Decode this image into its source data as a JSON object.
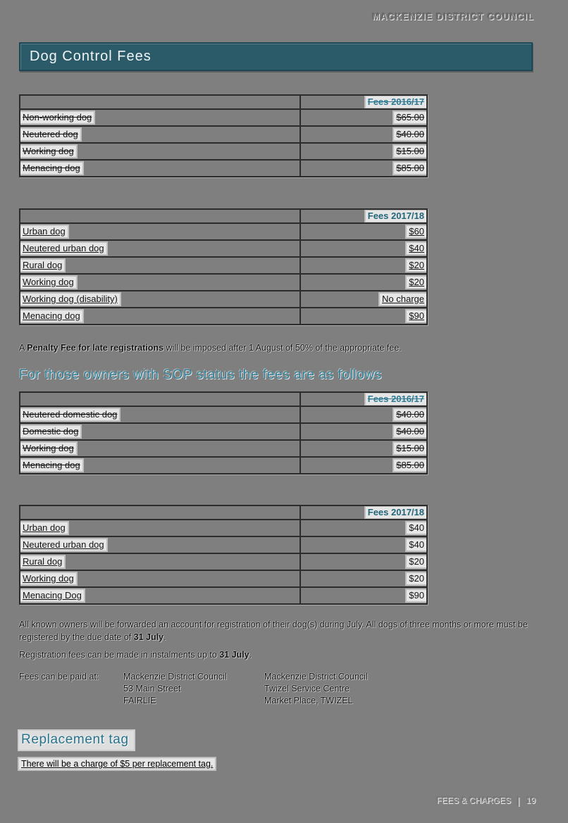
{
  "header": {
    "council_name": "MACKENZIE DISTRICT COUNCIL"
  },
  "title_banner": {
    "title": "Dog Control Fees"
  },
  "tables": [
    {
      "id": "dog-fees-2016-17",
      "header": "Fees 2016/17",
      "style": "deleted",
      "rows": [
        {
          "label": "Non-working dog",
          "value": "$65.00"
        },
        {
          "label": "Neutered dog",
          "value": "$40.00"
        },
        {
          "label": "Working dog",
          "value": "$15.00"
        },
        {
          "label": "Menacing dog",
          "value": "$85.00"
        }
      ]
    },
    {
      "id": "dog-fees-2017-18",
      "header": "Fees 2017/18",
      "style": "inserted",
      "rows": [
        {
          "label": "Urban dog",
          "value": "$60"
        },
        {
          "label": "Neutered urban dog",
          "value": "$40"
        },
        {
          "label": "Rural dog",
          "value": "$20"
        },
        {
          "label": "Working dog",
          "value": "$20"
        },
        {
          "label": "Working dog (disability)",
          "value": "No charge"
        },
        {
          "label": "Menacing dog",
          "value": "$90"
        }
      ]
    },
    {
      "id": "sop-fees-2016-17",
      "header": "Fees 2016/17",
      "style": "deleted",
      "rows": [
        {
          "label": "Neutered domestic dog",
          "value": "$40.00"
        },
        {
          "label": "Domestic dog",
          "value": "$40.00"
        },
        {
          "label": "Working dog",
          "value": "$15.00"
        },
        {
          "label": "Menacing dog",
          "value": "$85.00"
        }
      ]
    },
    {
      "id": "sop-fees-2017-18",
      "header": "Fees 2017/18",
      "style": "inserted-labels",
      "rows": [
        {
          "label": "Urban dog",
          "value": "$40"
        },
        {
          "label": "Neutered urban dog",
          "value": "$40"
        },
        {
          "label": "Rural dog",
          "value": "$20"
        },
        {
          "label": "Working dog",
          "value": "$20"
        },
        {
          "label": "Menacing Dog",
          "value": "$90"
        }
      ]
    }
  ],
  "penalty_note": {
    "prefix": "A ",
    "bold": "Penalty Fee for late registrations",
    "rest": " will be imposed after 1 August of 50% of the appropriate fee."
  },
  "sop_heading": "For those owners with SOP status the fees are as follows",
  "registration_paragraph": {
    "body": "All known owners will be forwarded an account for registration of their dog(s) during July.  All dogs of three months or more must be registered by the due date of ",
    "bold": "31 July",
    "suffix": "."
  },
  "instalments_paragraph": {
    "body": "Registration fees can be made in instalments up to ",
    "bold": "31 July",
    "suffix": "."
  },
  "payment": {
    "label": "Fees can be paid at:",
    "locations": [
      {
        "lines": [
          "Mackenzie District Council",
          "53 Main Street",
          "FAIRLIE"
        ]
      },
      {
        "lines": [
          "Mackenzie District Council",
          "Twizel Service Centre",
          "Market Place, TWIZEL"
        ]
      }
    ]
  },
  "replacement": {
    "heading": "Replacement tag",
    "note": "There will be a charge of $5 per replacement tag."
  },
  "footer": {
    "label": "FEES & CHARGES",
    "separator": "|",
    "page_number": "19"
  },
  "colors": {
    "page_background": "#7F7F7F",
    "banner_background": "#2B5A69",
    "banner_border": "#1D4755",
    "banner_text": "#EFF5F6",
    "section_heading_teal": "#2C7D95",
    "table_header_teal_current": "#206578",
    "table_header_teal_deleted": "#2E7A93",
    "highlight_box": "#E6E6E6",
    "body_text": "#141414",
    "table_border": "#2C2C2C"
  }
}
